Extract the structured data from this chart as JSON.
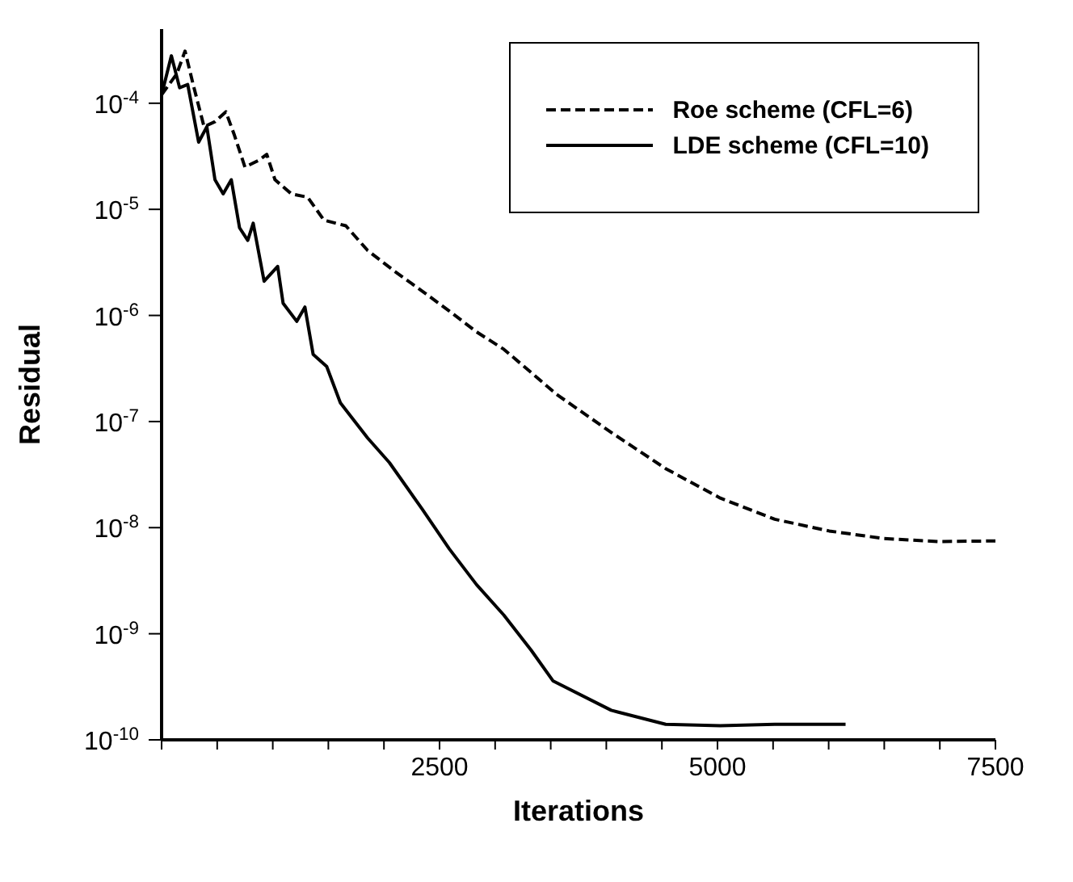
{
  "chart_data": {
    "type": "line",
    "xlabel": "Iterations",
    "ylabel": "Residual",
    "log": "y",
    "xlim": [
      0,
      7500
    ],
    "ylim": [
      1e-10,
      0.0005
    ],
    "xticks": [
      {
        "value": 0,
        "label": null
      },
      {
        "value": 500,
        "label": null
      },
      {
        "value": 1000,
        "label": null
      },
      {
        "value": 1500,
        "label": null
      },
      {
        "value": 2000,
        "label": null
      },
      2500,
      {
        "value": 3000,
        "label": null
      },
      {
        "value": 3500,
        "label": null
      },
      {
        "value": 4000,
        "label": null
      },
      {
        "value": 4500,
        "label": null
      },
      5000,
      {
        "value": 5500,
        "label": null
      },
      {
        "value": 6000,
        "label": null
      },
      {
        "value": 6500,
        "label": null
      },
      {
        "value": 7000,
        "label": null
      },
      7500
    ],
    "yticks": [
      {
        "value": 1e-10,
        "label": "10$^{-10}$"
      },
      {
        "value": 1e-09,
        "label": "10$^{-9}$"
      },
      {
        "value": 1e-08,
        "label": "10$^{-8}$"
      },
      {
        "value": 1e-07,
        "label": "10$^{-7}$"
      },
      {
        "value": 1e-06,
        "label": "10$^{-6}$"
      },
      {
        "value": 1e-05,
        "label": "10$^{-5}$"
      },
      {
        "value": 0.0001,
        "label": "10$^{-4}$"
      }
    ],
    "grid": false,
    "legend": "top right",
    "marker": "none",
    "series": [
      {
        "name": "Roe scheme (CFL=6)",
        "color": "#000000",
        "line_style": "dashed",
        "x": [
          0,
          137,
          211,
          284,
          382,
          480,
          578,
          652,
          750,
          873,
          946,
          1020,
          1167,
          1314,
          1461,
          1657,
          1853,
          2098,
          2343,
          2588,
          2833,
          3078,
          3324,
          3554,
          4044,
          4534,
          5025,
          5515,
          6005,
          6495,
          6985,
          7500
        ],
        "values": [
          0.00012,
          0.00019,
          0.00031,
          0.00015,
          6e-05,
          6.7e-05,
          8.3e-05,
          5.1e-05,
          2.5e-05,
          2.9e-05,
          3.3e-05,
          1.9e-05,
          1.4e-05,
          1.3e-05,
          7.9e-06,
          7e-06,
          4.1e-06,
          2.6e-06,
          1.7e-06,
          1.1e-06,
          7e-07,
          4.8e-07,
          2.9e-07,
          1.8e-07,
          7.9e-08,
          3.6e-08,
          1.9e-08,
          1.2e-08,
          9.3e-09,
          7.9e-09,
          7.4e-09,
          7.5e-09
        ]
      },
      {
        "name": "LDE scheme (CFL=10)",
        "color": "#000000",
        "line_style": "solid",
        "x": [
          0,
          88,
          162,
          235,
          333,
          407,
          480,
          554,
          627,
          701,
          775,
          824,
          922,
          1044,
          1093,
          1216,
          1289,
          1363,
          1485,
          1608,
          1853,
          2049,
          2343,
          2588,
          2833,
          3078,
          3324,
          3520,
          4044,
          4534,
          5025,
          5515,
          6152
        ],
        "values": [
          0.00012,
          0.00028,
          0.00014,
          0.00015,
          4.3e-05,
          6e-05,
          1.9e-05,
          1.4e-05,
          1.9e-05,
          6.7e-06,
          5.1e-06,
          7.4e-06,
          2.1e-06,
          2.9e-06,
          1.3e-06,
          8.8e-07,
          1.2e-06,
          4.3e-07,
          3.3e-07,
          1.5e-07,
          7e-08,
          4.1e-08,
          1.5e-08,
          6.3e-09,
          2.9e-09,
          1.5e-09,
          7e-10,
          3.6e-10,
          1.9e-10,
          1.4e-10,
          1.36e-10,
          1.4e-10,
          1.4e-10
        ]
      }
    ]
  }
}
